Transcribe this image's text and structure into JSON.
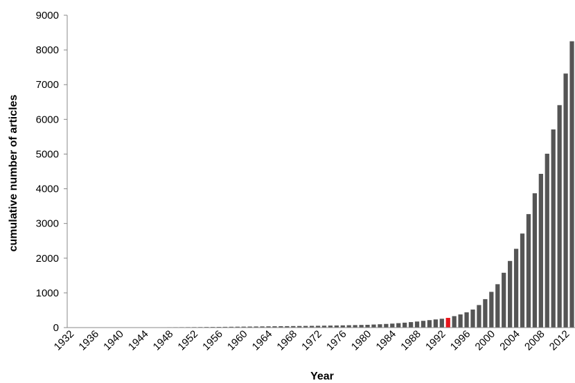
{
  "chart_data": {
    "type": "bar",
    "x_label": "Year",
    "y_label": "cumulative number of articles",
    "categories": [
      "1932",
      null,
      null,
      null,
      "1936",
      null,
      null,
      null,
      "1940",
      null,
      null,
      null,
      "1944",
      null,
      null,
      null,
      "1948",
      null,
      null,
      null,
      "1952",
      null,
      null,
      null,
      "1956",
      null,
      null,
      null,
      "1960",
      null,
      null,
      null,
      "1964",
      null,
      null,
      null,
      "1968",
      null,
      null,
      null,
      "1972",
      null,
      null,
      null,
      "1976",
      null,
      null,
      null,
      "1980",
      null,
      null,
      null,
      "1984",
      null,
      null,
      null,
      "1988",
      null,
      null,
      null,
      "1992",
      null,
      null,
      null,
      "1996",
      null,
      null,
      null,
      "2000",
      null,
      null,
      null,
      "2004",
      null,
      null,
      null,
      "2008",
      null,
      null,
      null,
      "2012",
      null
    ],
    "values": [
      1,
      1,
      2,
      2,
      3,
      3,
      4,
      4,
      5,
      5,
      6,
      6,
      7,
      8,
      9,
      10,
      11,
      12,
      13,
      14,
      15,
      16,
      18,
      19,
      20,
      22,
      24,
      26,
      28,
      30,
      32,
      34,
      36,
      38,
      40,
      42,
      44,
      46,
      48,
      50,
      52,
      55,
      58,
      61,
      64,
      68,
      72,
      76,
      80,
      88,
      96,
      105,
      115,
      128,
      142,
      158,
      175,
      195,
      215,
      235,
      255,
      280,
      330,
      380,
      440,
      520,
      650,
      820,
      1030,
      1250,
      1580,
      1920,
      2270,
      2710,
      3270,
      3870,
      4430,
      5010,
      5710,
      6410,
      7320,
      8250
    ],
    "colors": [
      "#555555",
      "#555555",
      "#555555",
      "#555555",
      "#555555",
      "#555555",
      "#555555",
      "#555555",
      "#555555",
      "#555555",
      "#555555",
      "#555555",
      "#555555",
      "#555555",
      "#555555",
      "#555555",
      "#555555",
      "#555555",
      "#555555",
      "#555555",
      "#555555",
      "#555555",
      "#555555",
      "#555555",
      "#555555",
      "#555555",
      "#555555",
      "#555555",
      "#555555",
      "#555555",
      "#555555",
      "#555555",
      "#555555",
      "#555555",
      "#555555",
      "#555555",
      "#555555",
      "#555555",
      "#555555",
      "#555555",
      "#555555",
      "#555555",
      "#555555",
      "#555555",
      "#555555",
      "#555555",
      "#555555",
      "#555555",
      "#555555",
      "#555555",
      "#555555",
      "#555555",
      "#555555",
      "#555555",
      "#555555",
      "#555555",
      "#555555",
      "#555555",
      "#555555",
      "#555555",
      "#555555",
      "#e8141b",
      "#555555",
      "#555555",
      "#555555",
      "#555555",
      "#555555",
      "#555555",
      "#555555",
      "#555555",
      "#555555",
      "#555555",
      "#555555",
      "#555555",
      "#555555",
      "#555555",
      "#555555",
      "#555555",
      "#555555",
      "#555555",
      "#555555",
      "#555555"
    ],
    "ylim": [
      0,
      9000
    ],
    "yticks": [
      0,
      1000,
      2000,
      3000,
      4000,
      5000,
      6000,
      7000,
      8000,
      9000
    ],
    "grid": false
  }
}
